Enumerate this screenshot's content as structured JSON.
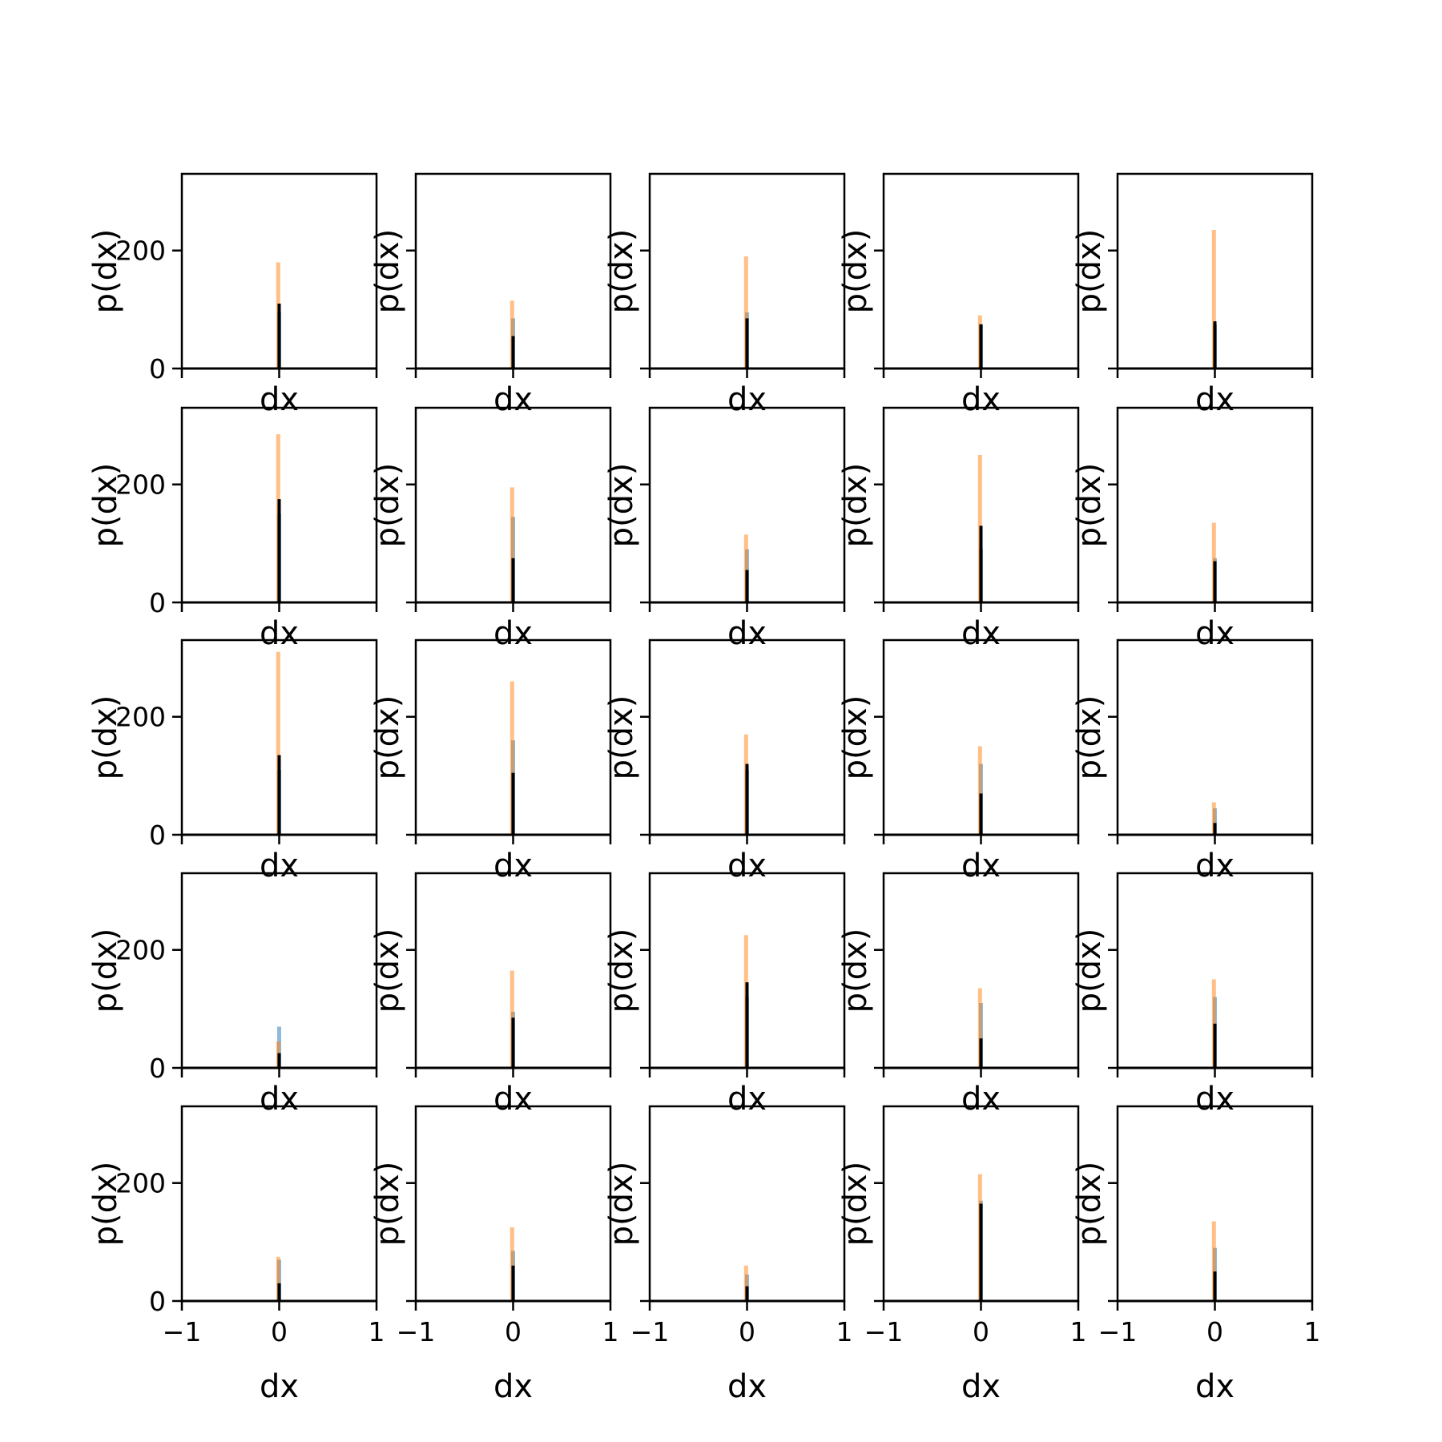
{
  "chart_data": {
    "type": "bar",
    "layout": "grid-5x5",
    "xlabel": "dx",
    "ylabel": "p(dx)",
    "xlim": [
      -1,
      1
    ],
    "ylim": [
      0,
      330
    ],
    "xticks": [
      -1,
      0,
      1
    ],
    "xtick_labels": [
      "−1",
      "0",
      "1"
    ],
    "yticks": [
      0,
      200
    ],
    "ytick_labels": [
      "0",
      "200"
    ],
    "colors": {
      "blue": "#1f77b4",
      "orange": "#ff7f0e",
      "black": "#000000"
    },
    "panels": [
      {
        "blue": 95,
        "orange": 180,
        "black": 110
      },
      {
        "blue": 85,
        "orange": 115,
        "black": 55
      },
      {
        "blue": 95,
        "orange": 190,
        "black": 85
      },
      {
        "blue": 75,
        "orange": 90,
        "black": 75
      },
      {
        "blue": 75,
        "orange": 235,
        "black": 80
      },
      {
        "blue": 150,
        "orange": 285,
        "black": 175
      },
      {
        "blue": 145,
        "orange": 195,
        "black": 75
      },
      {
        "blue": 90,
        "orange": 115,
        "black": 55
      },
      {
        "blue": 90,
        "orange": 250,
        "black": 130
      },
      {
        "blue": 75,
        "orange": 135,
        "black": 70
      },
      {
        "blue": 110,
        "orange": 310,
        "black": 135
      },
      {
        "blue": 160,
        "orange": 260,
        "black": 105
      },
      {
        "blue": 110,
        "orange": 170,
        "black": 120
      },
      {
        "blue": 120,
        "orange": 150,
        "black": 70
      },
      {
        "blue": 45,
        "orange": 55,
        "black": 20
      },
      {
        "blue": 70,
        "orange": 45,
        "black": 25
      },
      {
        "blue": 95,
        "orange": 165,
        "black": 85
      },
      {
        "blue": 120,
        "orange": 225,
        "black": 145
      },
      {
        "blue": 110,
        "orange": 135,
        "black": 50
      },
      {
        "blue": 120,
        "orange": 150,
        "black": 75
      },
      {
        "blue": 70,
        "orange": 75,
        "black": 30
      },
      {
        "blue": 85,
        "orange": 125,
        "black": 60
      },
      {
        "blue": 45,
        "orange": 60,
        "black": 25
      },
      {
        "blue": 170,
        "orange": 215,
        "black": 165
      },
      {
        "blue": 90,
        "orange": 135,
        "black": 50
      }
    ]
  }
}
